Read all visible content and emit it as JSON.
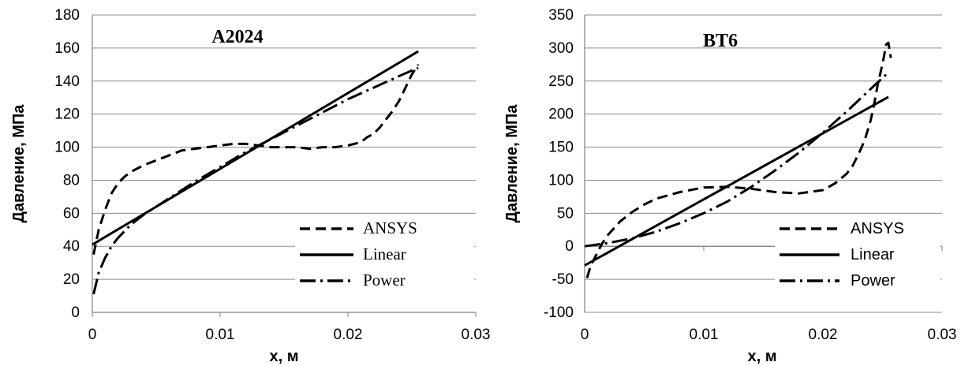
{
  "chart_data": [
    {
      "type": "line",
      "title": "A2024",
      "xlabel": "x, м",
      "ylabel": "Давление, МПа",
      "xlim": [
        0,
        0.03
      ],
      "ylim": [
        0,
        180
      ],
      "x_ticks": [
        "0",
        "0.01",
        "0.02",
        "0.03"
      ],
      "y_ticks": [
        "0",
        "20",
        "40",
        "60",
        "80",
        "100",
        "120",
        "140",
        "160",
        "180"
      ],
      "grid": "horizontal",
      "legend_position": "bottom-right",
      "series": [
        {
          "name": "ANSYS",
          "style": "dashed",
          "x": [
            0.0001,
            0.0005,
            0.001,
            0.0015,
            0.002,
            0.0025,
            0.003,
            0.004,
            0.005,
            0.006,
            0.007,
            0.008,
            0.009,
            0.01,
            0.011,
            0.012,
            0.013,
            0.014,
            0.015,
            0.016,
            0.017,
            0.018,
            0.019,
            0.02,
            0.021,
            0.0215,
            0.022,
            0.0225,
            0.023,
            0.0235,
            0.024,
            0.0245,
            0.025,
            0.0255
          ],
          "y": [
            35,
            50,
            62,
            72,
            78,
            82,
            85,
            89,
            92,
            95,
            98,
            99,
            100,
            101,
            102,
            102,
            101,
            100,
            100,
            100,
            99,
            100,
            100,
            101,
            103,
            106,
            108,
            112,
            117,
            122,
            128,
            136,
            144,
            150
          ]
        },
        {
          "name": "Linear",
          "style": "solid",
          "x": [
            0,
            0.0255
          ],
          "y": [
            41,
            158
          ]
        },
        {
          "name": "Power",
          "style": "dashdot",
          "x": [
            0.0001,
            0.0005,
            0.001,
            0.0015,
            0.002,
            0.003,
            0.004,
            0.006,
            0.008,
            0.01,
            0.012,
            0.014,
            0.016,
            0.018,
            0.02,
            0.022,
            0.024,
            0.0255
          ],
          "y": [
            11,
            24,
            33,
            40,
            45,
            53,
            59,
            69,
            79,
            88,
            97,
            105,
            113,
            121,
            129,
            136,
            143,
            148
          ]
        }
      ]
    },
    {
      "type": "line",
      "title": "BT6",
      "xlabel": "x, м",
      "ylabel": "Давление, МПа",
      "xlim": [
        0,
        0.03
      ],
      "ylim": [
        -100,
        350
      ],
      "x_ticks": [
        "0",
        "0.01",
        "0.02",
        "0.03"
      ],
      "y_ticks": [
        "-100",
        "-50",
        "0",
        "50",
        "100",
        "150",
        "200",
        "250",
        "300",
        "350"
      ],
      "grid": "horizontal",
      "legend_position": "bottom-right",
      "series": [
        {
          "name": "ANSYS",
          "style": "dashed",
          "x": [
            0.0002,
            0.0005,
            0.001,
            0.0015,
            0.002,
            0.003,
            0.004,
            0.005,
            0.006,
            0.008,
            0.01,
            0.012,
            0.014,
            0.016,
            0.018,
            0.02,
            0.021,
            0.022,
            0.0225,
            0.023,
            0.0235,
            0.024,
            0.0243,
            0.0246,
            0.0249,
            0.0251,
            0.0253,
            0.0255,
            0.0257
          ],
          "y": [
            -48,
            -30,
            -12,
            5,
            18,
            38,
            52,
            63,
            72,
            82,
            89,
            90,
            87,
            82,
            80,
            85,
            95,
            110,
            122,
            140,
            160,
            190,
            215,
            245,
            268,
            285,
            305,
            308,
            285
          ]
        },
        {
          "name": "Linear",
          "style": "solid",
          "x": [
            0,
            0.0255
          ],
          "y": [
            -29,
            226
          ]
        },
        {
          "name": "Power",
          "style": "dashdot",
          "x": [
            0,
            0.002,
            0.004,
            0.006,
            0.008,
            0.01,
            0.012,
            0.014,
            0.016,
            0.018,
            0.02,
            0.022,
            0.024,
            0.0255
          ],
          "y": [
            0,
            5,
            12,
            22,
            35,
            50,
            68,
            90,
            115,
            142,
            172,
            204,
            238,
            263
          ]
        }
      ]
    }
  ]
}
